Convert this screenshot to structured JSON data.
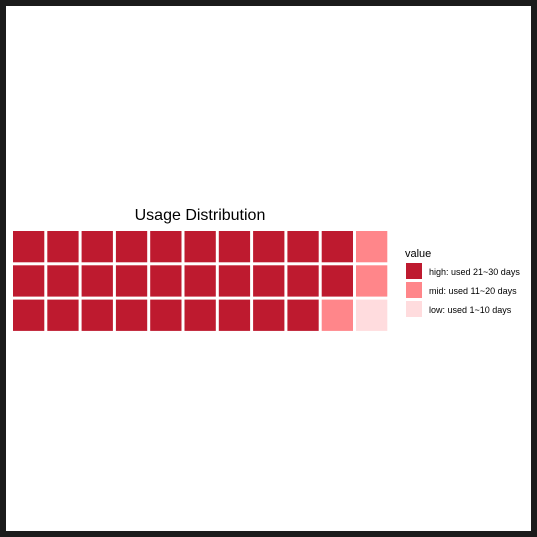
{
  "chart_data": {
    "type": "waffle",
    "title": "Usage Distribution",
    "legend_title": "value",
    "legend_position": "right",
    "grid": "off",
    "rows": 3,
    "columns": 11,
    "fill_order": "column-major, top-to-bottom within each column, left-to-right",
    "categories": [
      {
        "label": "high: used 21~30 days",
        "count": 29,
        "color": "#BE1A2F"
      },
      {
        "label": "mid: used 11~20 days",
        "count": 3,
        "color": "#FF868A"
      },
      {
        "label": "low: used 1~10 days",
        "count": 1,
        "color": "#FFDCDE"
      }
    ]
  }
}
